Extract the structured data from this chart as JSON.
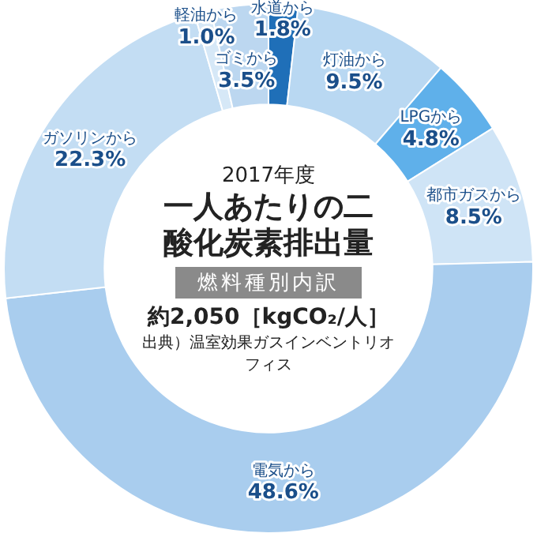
{
  "chart_data": {
    "type": "donut",
    "title": "一人あたりの二酸化炭素排出量",
    "subtitle": "燃料種別内訳",
    "annotations": [
      "2017年度",
      "約2,050［kgCO₂/人］",
      "出典）温室効果ガスインベントリオフィス"
    ],
    "categories": [
      "水道から",
      "灯油から",
      "LPGから",
      "都市ガスから",
      "電気から",
      "ガソリンから",
      "軽油から",
      "ゴミから"
    ],
    "values": [
      1.8,
      9.5,
      4.8,
      8.5,
      48.6,
      22.3,
      1.0,
      3.5
    ],
    "value_labels": [
      "1.8%",
      "9.5%",
      "4.8%",
      "8.5%",
      "48.6%",
      "22.3%",
      "1.0%",
      "3.5%"
    ],
    "colors": [
      "#1f6fb8",
      "#b9d8f2",
      "#5fb0ea",
      "#cfe4f6",
      "#a9cdee",
      "#c3ddf3",
      "#d6e8f7",
      "#bcd7f0"
    ]
  }
}
